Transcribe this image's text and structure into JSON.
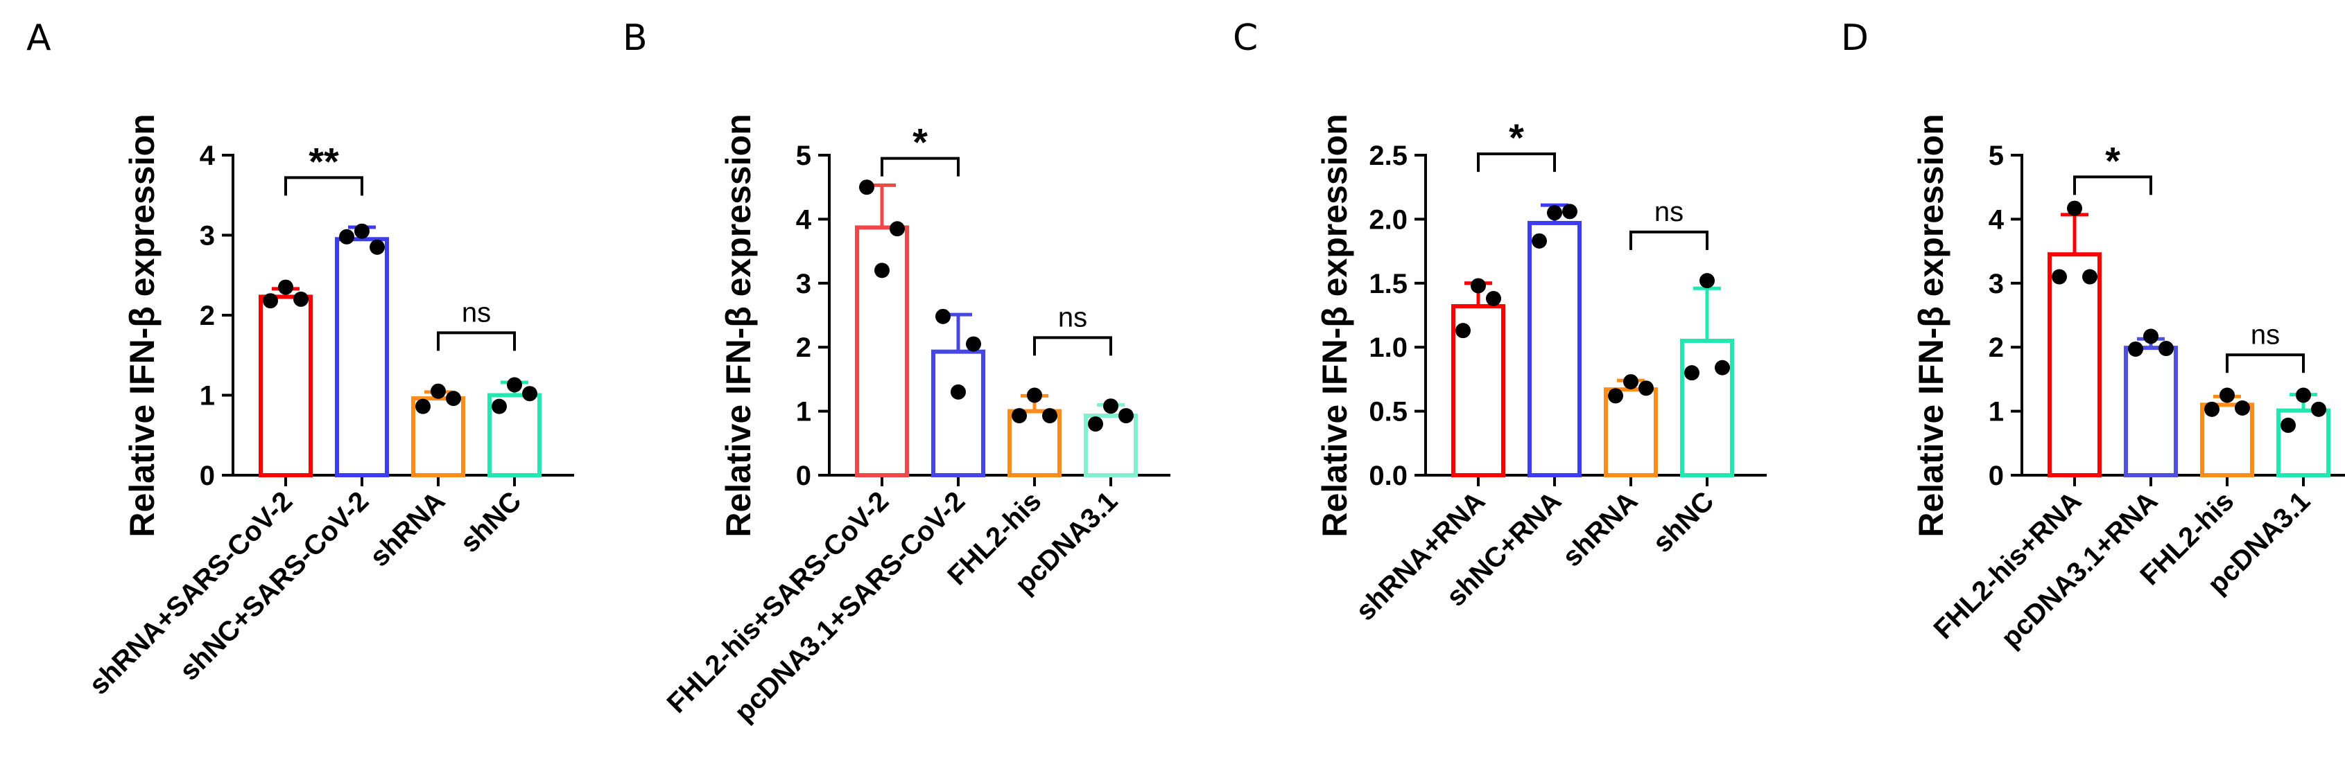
{
  "chart_data": [
    {
      "type": "bar",
      "panel": "A",
      "ylabel": "Relative IFN-β   expression",
      "ylim": [
        0,
        4
      ],
      "yticks": [
        "0",
        "1",
        "2",
        "3",
        "4"
      ],
      "categories": [
        "shRNA+SARS-CoV-2",
        "shNC+SARS-CoV-2",
        "shRNA",
        "shNC"
      ],
      "colors": [
        "#ff0000",
        "#3c3cf0",
        "#ff8c1a",
        "#20e8b0"
      ],
      "values": [
        2.23,
        2.95,
        0.96,
        1.0
      ],
      "errors": [
        0.1,
        0.15,
        0.08,
        0.16
      ],
      "points": [
        [
          2.18,
          2.35,
          2.2
        ],
        [
          2.98,
          3.05,
          2.85
        ],
        [
          0.86,
          1.05,
          0.96
        ],
        [
          0.86,
          1.13,
          1.02
        ]
      ],
      "significance": [
        {
          "from": 0,
          "to": 1,
          "label": "**",
          "y": 3.72
        },
        {
          "from": 2,
          "to": 3,
          "label": "ns",
          "y": 1.78
        }
      ]
    },
    {
      "type": "bar",
      "panel": "B",
      "ylabel": "Relative IFN-β   expression",
      "ylim": [
        0,
        5
      ],
      "yticks": [
        "0",
        "1",
        "2",
        "3",
        "4",
        "5"
      ],
      "categories": [
        "FHL2-his+SARS-CoV-2",
        "pcDNA3.1+SARS-CoV-2",
        "FHL2-his",
        "pcDNA3.1"
      ],
      "colors": [
        "#f04848",
        "#4646e6",
        "#ff8c1a",
        "#80f0d0"
      ],
      "values": [
        3.87,
        1.93,
        1.0,
        0.93
      ],
      "errors": [
        0.66,
        0.58,
        0.24,
        0.17
      ],
      "points": [
        [
          4.5,
          3.2,
          3.85
        ],
        [
          2.48,
          1.3,
          2.05
        ],
        [
          0.93,
          1.25,
          0.93
        ],
        [
          0.8,
          1.08,
          0.93
        ]
      ],
      "significance": [
        {
          "from": 0,
          "to": 1,
          "label": "*",
          "y": 4.95
        },
        {
          "from": 2,
          "to": 3,
          "label": "ns",
          "y": 2.15
        }
      ]
    },
    {
      "type": "bar",
      "panel": "C",
      "ylabel": "Relative IFN-β   expression",
      "ylim": [
        0,
        2.5
      ],
      "yticks": [
        "0.0",
        "0.5",
        "1.0",
        "1.5",
        "2.0",
        "2.5"
      ],
      "categories": [
        "shRNA+RNA",
        "shNC+RNA",
        "shRNA",
        "shNC"
      ],
      "colors": [
        "#ff0000",
        "#3c3cf0",
        "#ff8c1a",
        "#20e8b0"
      ],
      "values": [
        1.32,
        1.97,
        0.67,
        1.05
      ],
      "errors": [
        0.18,
        0.14,
        0.07,
        0.41
      ],
      "points": [
        [
          1.13,
          1.48,
          1.38
        ],
        [
          1.83,
          2.05,
          2.06
        ],
        [
          0.62,
          0.73,
          0.68
        ],
        [
          0.8,
          1.52,
          0.84
        ]
      ],
      "significance": [
        {
          "from": 0,
          "to": 1,
          "label": "*",
          "y": 2.51
        },
        {
          "from": 2,
          "to": 3,
          "label": "ns",
          "y": 1.9
        }
      ]
    },
    {
      "type": "bar",
      "panel": "D",
      "ylabel": "Relative IFN-β   expression",
      "ylim": [
        0,
        5
      ],
      "yticks": [
        "0",
        "1",
        "2",
        "3",
        "4",
        "5"
      ],
      "categories": [
        "FHL2-his+RNA",
        "pcDNA3.1+RNA",
        "FHL2-his",
        "pcDNA3.1"
      ],
      "colors": [
        "#ff0000",
        "#5050e0",
        "#ff8c1a",
        "#20e8b0"
      ],
      "values": [
        3.45,
        1.99,
        1.1,
        1.01
      ],
      "errors": [
        0.62,
        0.14,
        0.13,
        0.25
      ],
      "points": [
        [
          3.1,
          4.17,
          3.1
        ],
        [
          1.97,
          2.17,
          1.98
        ],
        [
          1.03,
          1.25,
          1.05
        ],
        [
          0.78,
          1.25,
          1.03
        ]
      ],
      "significance": [
        {
          "from": 0,
          "to": 1,
          "label": "*",
          "y": 4.66
        },
        {
          "from": 2,
          "to": 3,
          "label": "ns",
          "y": 1.88
        }
      ]
    }
  ]
}
